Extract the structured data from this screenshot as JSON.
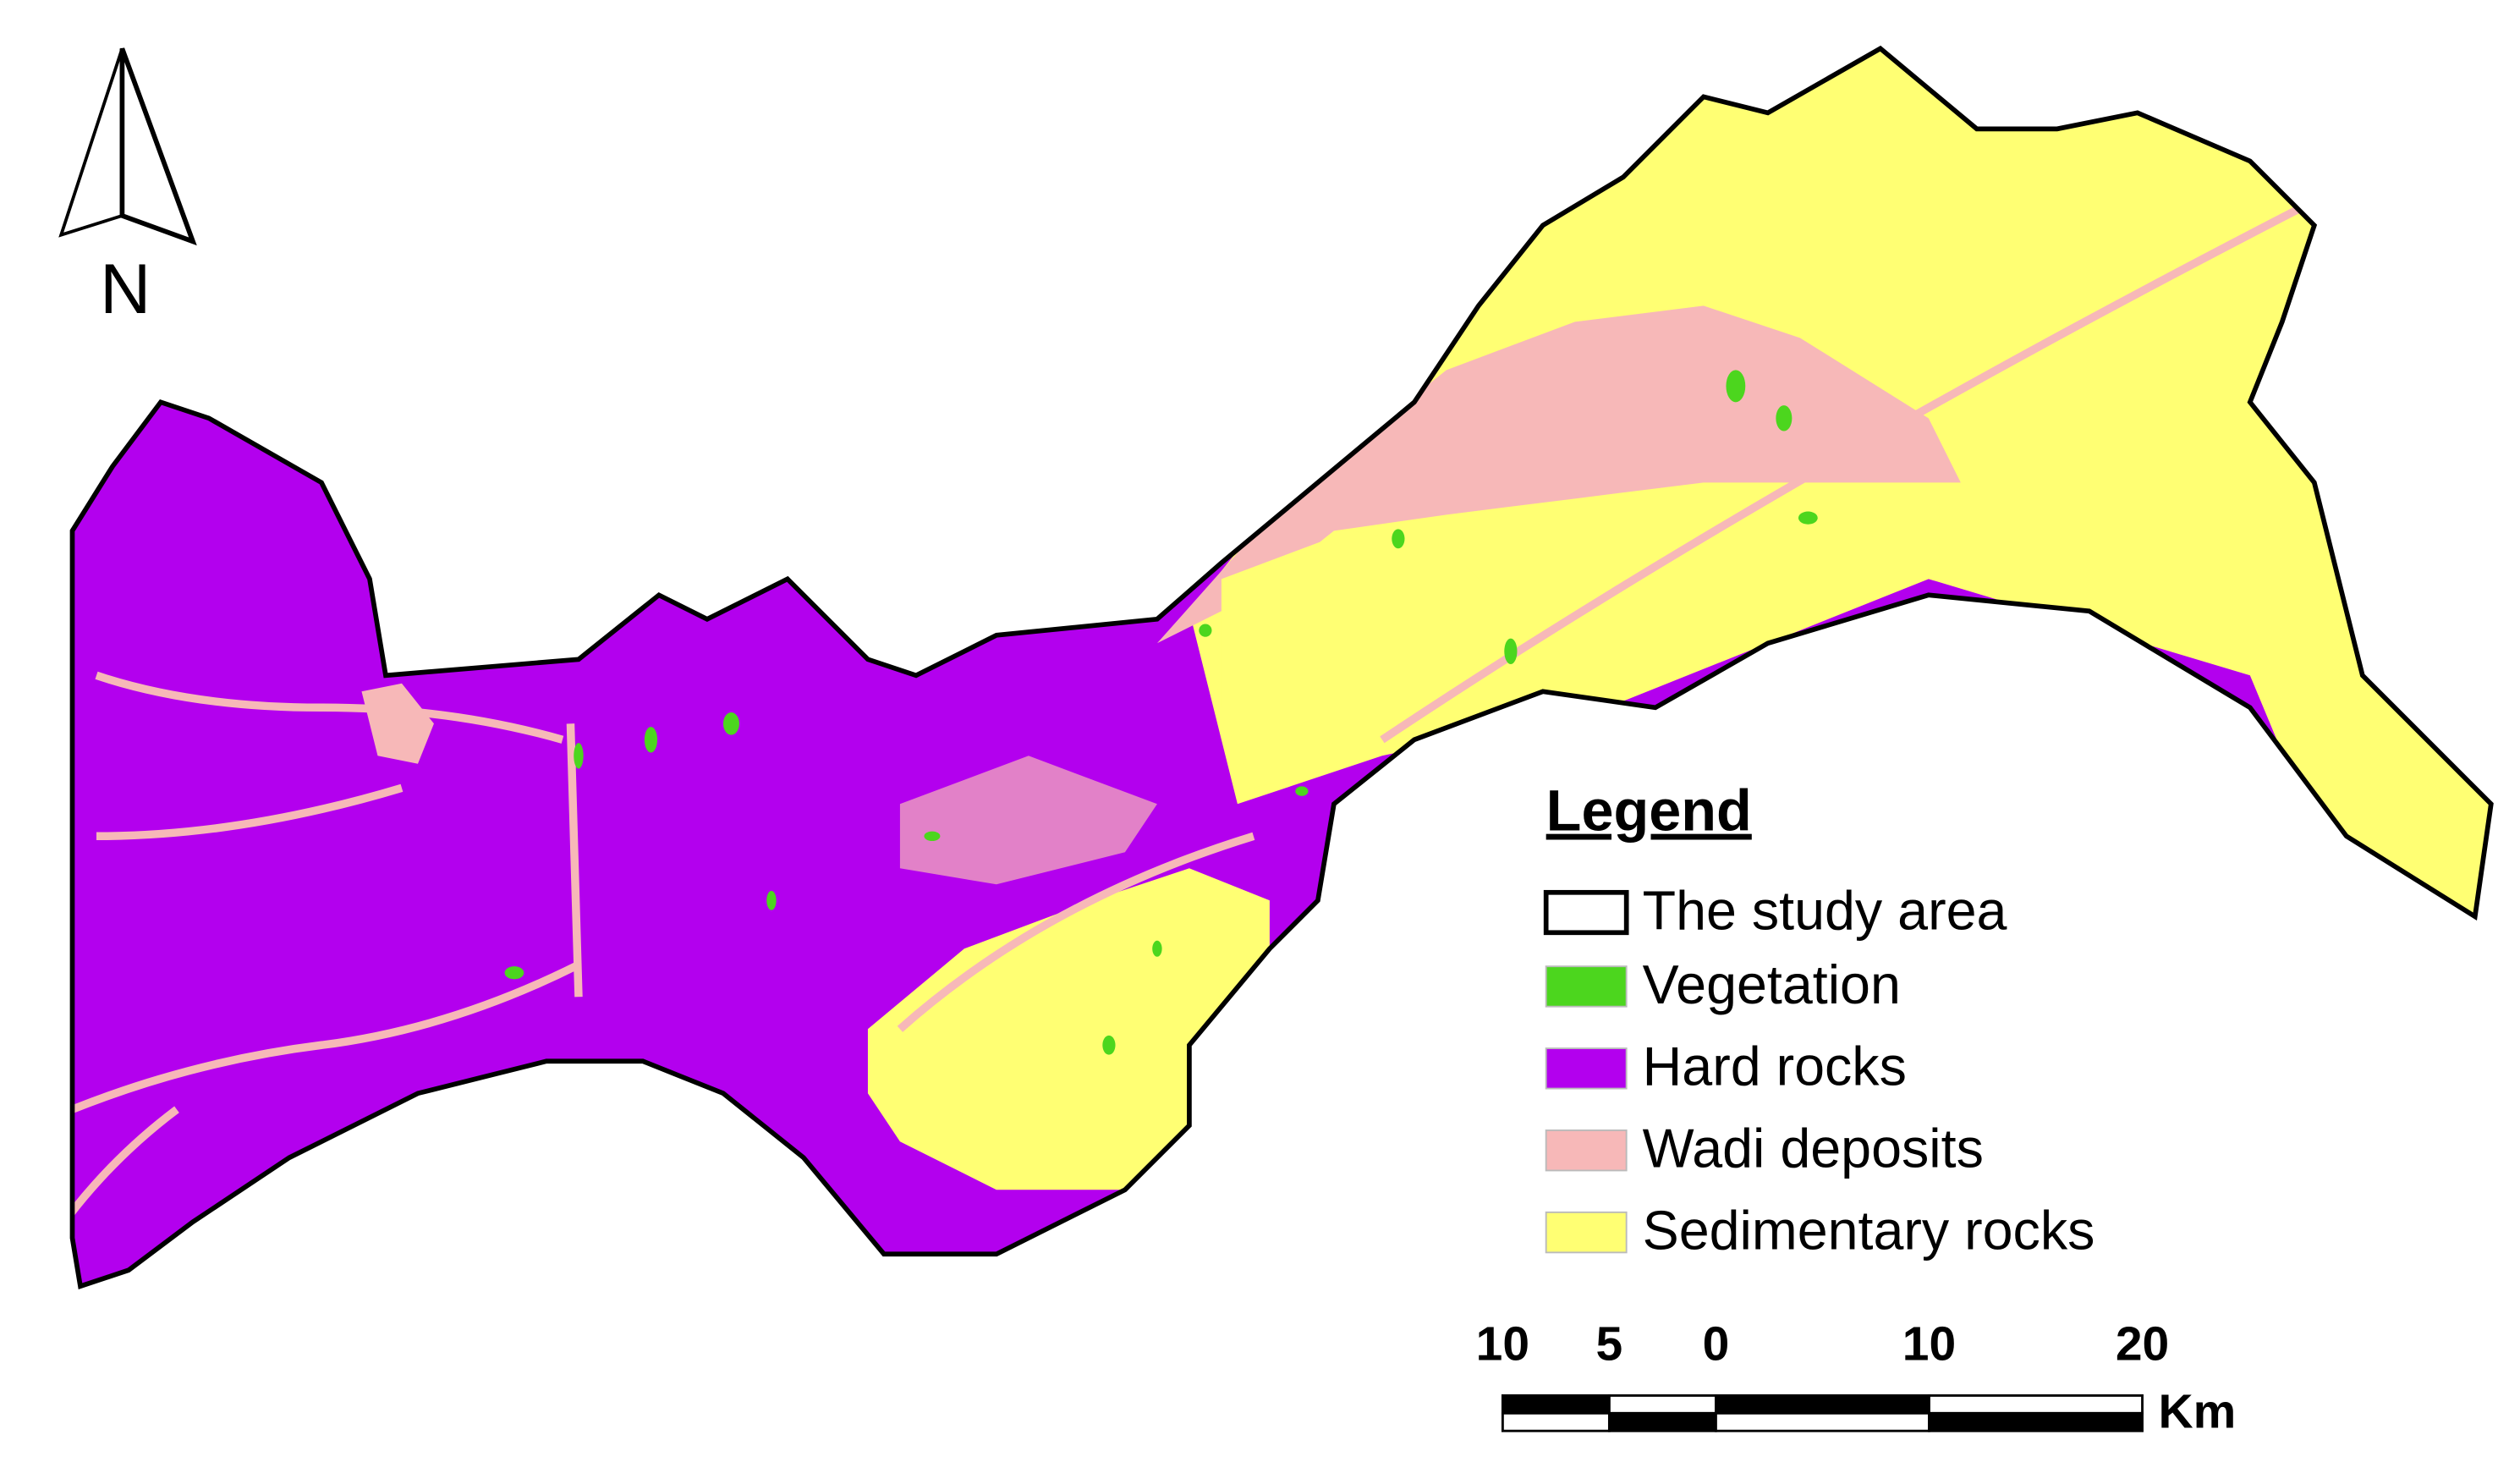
{
  "map": {
    "north_label": "N",
    "legend": {
      "title": "Legend",
      "items": [
        {
          "label": "The study area",
          "color": "#ffffff"
        },
        {
          "label": "Vegetation",
          "color": "#4cd61e"
        },
        {
          "label": "Hard rocks",
          "color": "#b300ee"
        },
        {
          "label": "Wadi deposits",
          "color": "#f7b8b8"
        },
        {
          "label": "Sedimentary rocks",
          "color": "#ffff73"
        }
      ]
    },
    "scale_bar": {
      "unit": "Km",
      "ticks": [
        {
          "value": -10,
          "label": "10"
        },
        {
          "value": -5,
          "label": "5"
        },
        0,
        10,
        20
      ]
    }
  }
}
